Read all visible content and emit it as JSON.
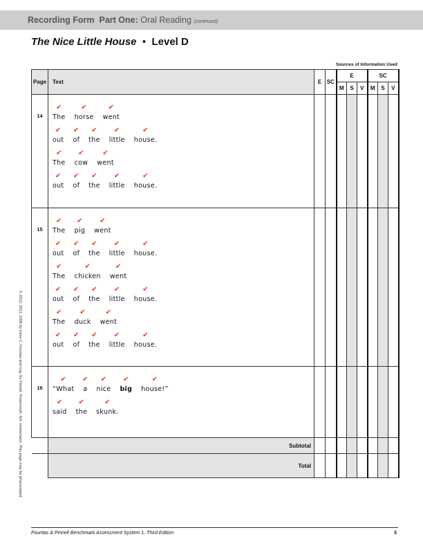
{
  "header": {
    "form": "Recording Form",
    "part": "Part One:",
    "section": "Oral Reading",
    "note": "(continued)"
  },
  "title": {
    "book": "The Nice Little House",
    "bullet": "•",
    "level": "Level D"
  },
  "table": {
    "sources_label": "Sources of Information Used",
    "columns": {
      "page": "Page",
      "text": "Text",
      "e": "E",
      "sc": "SC",
      "e_group": "E",
      "sc_group": "SC",
      "m": "M",
      "s": "S",
      "v": "V"
    },
    "check_color": "#e8401c",
    "rows": [
      {
        "page": "14",
        "lines": [
          [
            "The",
            "horse",
            "went"
          ],
          [
            "out",
            "of",
            "the",
            "little",
            "house."
          ],
          [
            "The",
            "cow",
            "went"
          ],
          [
            "out",
            "of",
            "the",
            "little",
            "house."
          ]
        ]
      },
      {
        "page": "15",
        "lines": [
          [
            "The",
            "pig",
            "went"
          ],
          [
            "out",
            "of",
            "the",
            "little",
            "house."
          ],
          [
            "The",
            "chicken",
            "went"
          ],
          [
            "out",
            "of",
            "the",
            "little",
            "house."
          ],
          [
            "The",
            "duck",
            "went"
          ],
          [
            "out",
            "of",
            "the",
            "little",
            "house."
          ]
        ]
      },
      {
        "page": "16",
        "lines": [
          [
            "“What",
            "a",
            "nice",
            "big",
            "house!”"
          ],
          [
            "said",
            "the",
            "skunk."
          ]
        ]
      }
    ],
    "subtotal": "Subtotal",
    "total": "Total"
  },
  "copyright": "© 2012, 2011, 2008 by Irene C. Fountas and Gay Su Pinnell. Portsmouth, NH: Heinemann. This page may be photocopied.",
  "footer": {
    "text": "Fountas & Pinnell Benchmark Assessment System 1, Third Edition",
    "page": "3"
  }
}
